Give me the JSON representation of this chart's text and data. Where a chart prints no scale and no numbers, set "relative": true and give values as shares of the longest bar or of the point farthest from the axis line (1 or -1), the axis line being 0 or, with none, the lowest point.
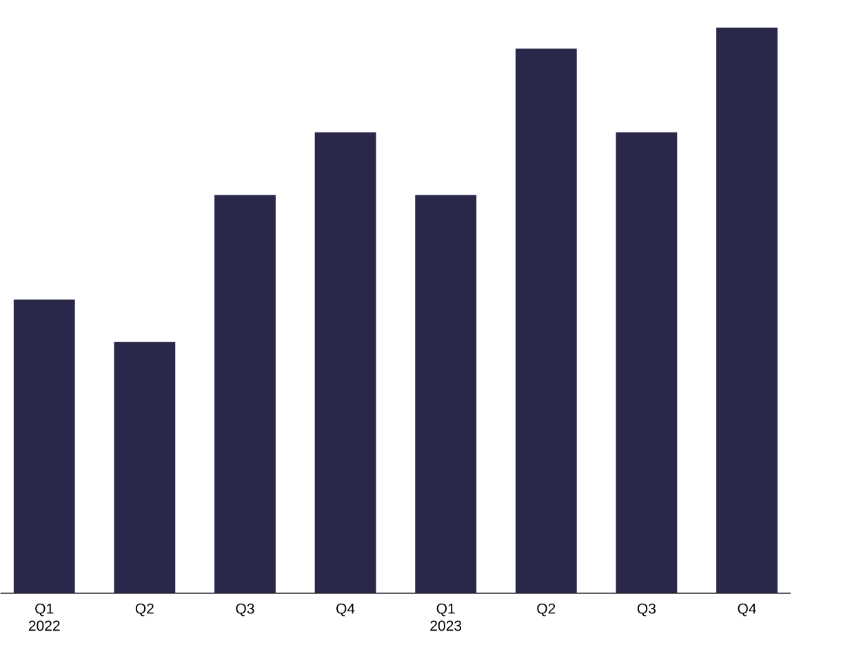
{
  "chart_data": {
    "type": "bar",
    "relative": true,
    "color": "#29284b",
    "categories": [
      "Q1 2022",
      "Q2",
      "Q3",
      "Q4",
      "Q1 2023",
      "Q2",
      "Q3",
      "Q4"
    ],
    "values": [
      0.519,
      0.444,
      0.704,
      0.815,
      0.704,
      0.963,
      0.815,
      1
    ]
  }
}
